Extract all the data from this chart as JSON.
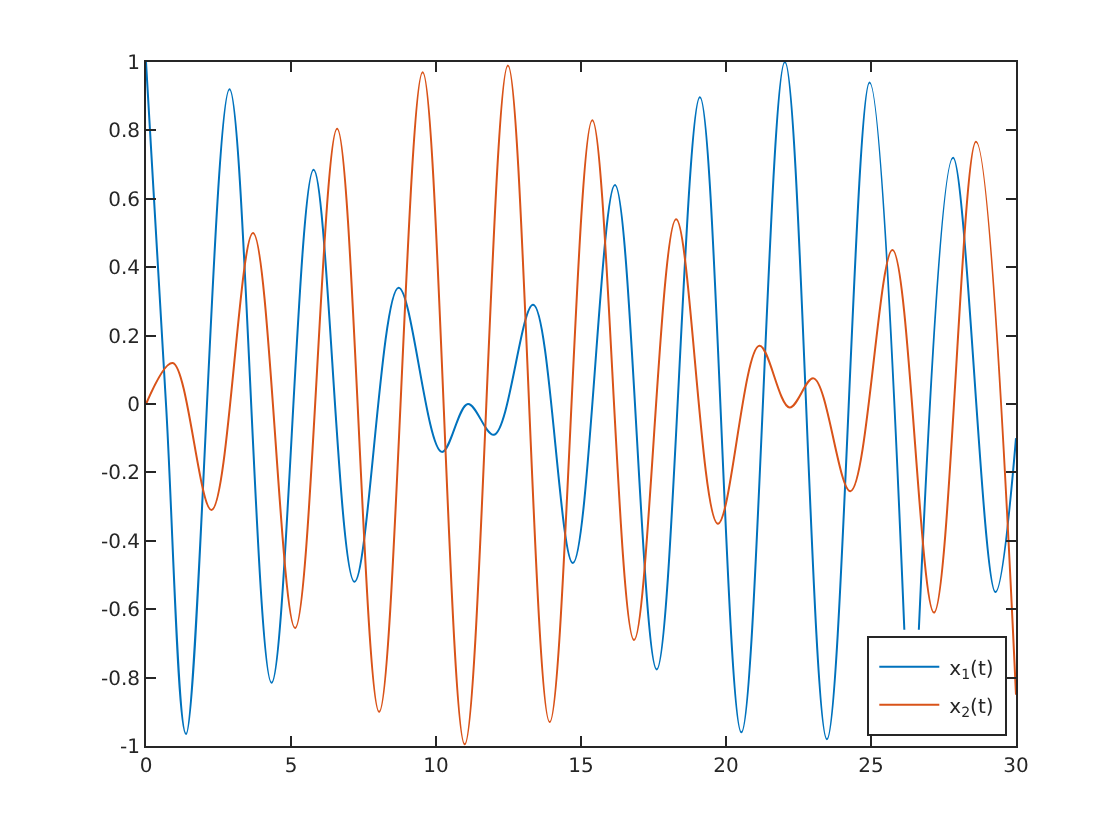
{
  "chart_data": {
    "type": "line",
    "xlim": [
      0,
      30
    ],
    "ylim": [
      -1,
      1
    ],
    "xticks": [
      0,
      5,
      10,
      15,
      20,
      25,
      30
    ],
    "yticks": [
      -1,
      -0.8,
      -0.6,
      -0.4,
      -0.2,
      0,
      0.2,
      0.4,
      0.6,
      0.8,
      1
    ],
    "legend": "bottom right",
    "series": [
      {
        "name": "x$_{1}$(t)",
        "color": "#0072bd",
        "x": [
          0,
          0.69,
          1.38,
          2.88,
          4.33,
          5.78,
          7.19,
          8.71,
          10.2,
          11.1,
          12.0,
          13.35,
          14.72,
          16.17,
          17.61,
          19.1,
          20.53,
          22.03,
          23.48,
          24.95,
          26.15,
          26.4,
          26.65,
          27.83,
          29.29,
          30
        ],
        "values": [
          1.0,
          0,
          -0.965,
          0.92,
          -0.815,
          0.685,
          -0.52,
          0.34,
          -0.14,
          0.0,
          -0.09,
          0.29,
          -0.465,
          0.64,
          -0.776,
          0.897,
          -0.96,
          1.0,
          -0.98,
          0.94,
          -0.66,
          null,
          -0.66,
          0.72,
          -0.55,
          -0.1
        ]
      },
      {
        "name": "x$_{2}$(t)",
        "color": "#d95319",
        "x": [
          0,
          0.92,
          2.26,
          3.69,
          5.14,
          6.59,
          8.04,
          9.54,
          10.99,
          12.48,
          13.92,
          15.39,
          16.83,
          18.28,
          19.72,
          21.15,
          22.19,
          23.02,
          24.29,
          25.74,
          27.17,
          28.62,
          30
        ],
        "values": [
          0,
          0.12,
          -0.31,
          0.5,
          -0.655,
          0.805,
          -0.9,
          0.97,
          -0.995,
          0.99,
          -0.93,
          0.83,
          -0.69,
          0.54,
          -0.35,
          0.17,
          -0.01,
          0.075,
          -0.255,
          0.45,
          -0.61,
          0.767,
          -0.85
        ]
      }
    ]
  }
}
